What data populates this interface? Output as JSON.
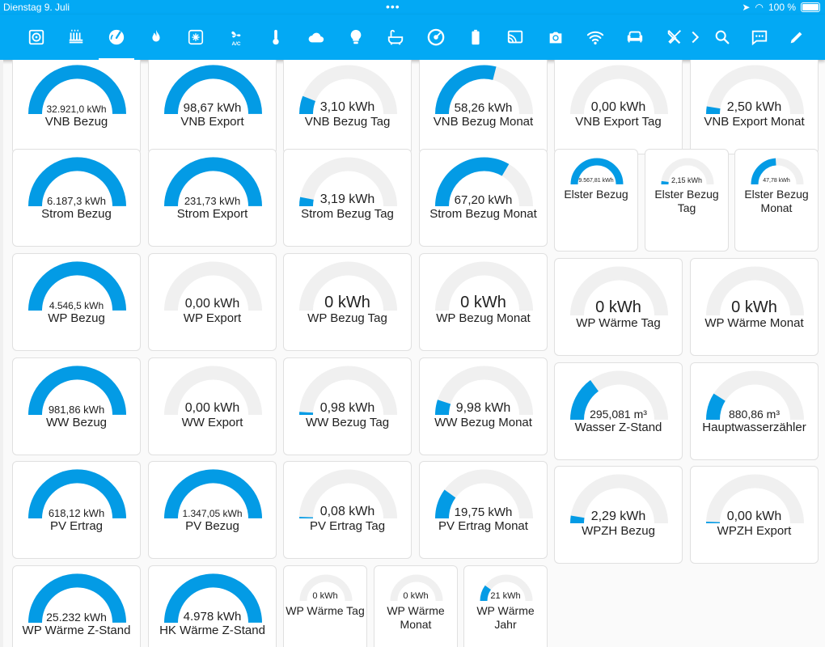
{
  "status_bar": {
    "date": "Dienstag 9. Juli",
    "battery": "100 %"
  },
  "toolbar": {
    "tabs": [
      {
        "icon": "hvac-unit-icon",
        "active": false
      },
      {
        "icon": "radiator-icon",
        "active": false
      },
      {
        "icon": "gauge-icon",
        "active": true
      },
      {
        "icon": "flame-icon",
        "active": false
      },
      {
        "icon": "heat-pump-icon",
        "active": false
      },
      {
        "icon": "air-conditioner-icon",
        "active": false
      },
      {
        "icon": "thermometer-icon",
        "active": false
      },
      {
        "icon": "cloud-icon",
        "active": false
      },
      {
        "icon": "lightbulb-icon",
        "active": false
      },
      {
        "icon": "bathtub-icon",
        "active": false
      },
      {
        "icon": "record-player-icon",
        "active": false
      },
      {
        "icon": "battery-icon",
        "active": false
      },
      {
        "icon": "cast-icon",
        "active": false
      },
      {
        "icon": "camera-icon",
        "active": false
      },
      {
        "icon": "wifi-icon",
        "active": false
      },
      {
        "icon": "sofa-icon",
        "active": false
      },
      {
        "icon": "silverware-icon",
        "active": false
      }
    ],
    "actions": [
      {
        "icon": "chevron-right-icon"
      },
      {
        "icon": "search-icon"
      },
      {
        "icon": "assist-icon"
      },
      {
        "icon": "pencil-icon"
      }
    ]
  },
  "colors": {
    "accent": "#03a9f4",
    "gauge_bg": "#f0f0f0",
    "gauge_fill": "#039be5"
  },
  "gauges": [
    {
      "name": "VNB Bezug",
      "value": "32.921,0 kWh",
      "fraction": 1.0
    },
    {
      "name": "VNB Export",
      "value": "98,67 kWh",
      "fraction": 1.0
    },
    {
      "name": "VNB Bezug Tag",
      "value": "3,10 kWh",
      "fraction": 0.12
    },
    {
      "name": "VNB Bezug Monat",
      "value": "58,26 kWh",
      "fraction": 0.58
    },
    {
      "name": "VNB Export Tag",
      "value": "0,00 kWh",
      "fraction": 0
    },
    {
      "name": "VNB Export Monat",
      "value": "2,50 kWh",
      "fraction": 0.05
    },
    {
      "name": "Strom Bezug",
      "value": "6.187,3 kWh",
      "fraction": 1.0
    },
    {
      "name": "Strom Export",
      "value": "231,73 kWh",
      "fraction": 1.0
    },
    {
      "name": "Strom Bezug Tag",
      "value": "3,19 kWh",
      "fraction": 0.06
    },
    {
      "name": "Strom Bezug Monat",
      "value": "67,20 kWh",
      "fraction": 0.67
    },
    {
      "name": "Elster Bezug",
      "value": "9.567,81 kWh",
      "fraction": 1.0
    },
    {
      "name": "Elster Bezug Tag",
      "value": "2,15 kWh",
      "fraction": 0.04
    },
    {
      "name": "Elster Bezug Monat",
      "value": "47,78 kWh",
      "fraction": 0.48
    },
    {
      "name": "WP Bezug",
      "value": "4.546,5 kWh",
      "fraction": 1.0
    },
    {
      "name": "WP Export",
      "value": "0,00 kWh",
      "fraction": 0
    },
    {
      "name": "WP Bezug Tag",
      "value": "0 kWh",
      "fraction": 0
    },
    {
      "name": "WP Bezug Monat",
      "value": "0 kWh",
      "fraction": 0
    },
    {
      "name": "WP Wärme Tag",
      "value": "0 kWh",
      "fraction": 0
    },
    {
      "name": "WP Wärme Monat",
      "value": "0 kWh",
      "fraction": 0
    },
    {
      "name": "WW Bezug",
      "value": "981,86 kWh",
      "fraction": 1.0
    },
    {
      "name": "WW Export",
      "value": "0,00 kWh",
      "fraction": 0
    },
    {
      "name": "WW Bezug Tag",
      "value": "0,98 kWh",
      "fraction": 0.02
    },
    {
      "name": "WW Bezug Monat",
      "value": "9,98 kWh",
      "fraction": 0.1
    },
    {
      "name": "Wasser Z-Stand",
      "value": "295,081 m³",
      "fraction": 0.3
    },
    {
      "name": "Hauptwasserzähler",
      "value": "880,86 m³",
      "fraction": 0.18
    },
    {
      "name": "PV Ertrag",
      "value": "618,12 kWh",
      "fraction": 1.0
    },
    {
      "name": "PV Bezug",
      "value": "1.347,05 kWh",
      "fraction": 1.0
    },
    {
      "name": "PV Ertrag Tag",
      "value": "0,08 kWh",
      "fraction": 0.01
    },
    {
      "name": "PV Ertrag Monat",
      "value": "19,75 kWh",
      "fraction": 0.2
    },
    {
      "name": "WPZH Bezug",
      "value": "2,29 kWh",
      "fraction": 0.05
    },
    {
      "name": "WPZH Export",
      "value": "0,00 kWh",
      "fraction": 0.01
    },
    {
      "name": "WP Wärme Z-Stand",
      "value": "25.232 kWh",
      "fraction": 1.0
    },
    {
      "name": "HK Wärme Z-Stand",
      "value": "4.978 kWh",
      "fraction": 1.0
    },
    {
      "name": "WP Wärme Tag",
      "value": "0 kWh",
      "fraction": 0
    },
    {
      "name": "WP Wärme Monat",
      "value": "0 kWh",
      "fraction": 0
    },
    {
      "name": "WP Wärme Jahr",
      "value": "21 kWh",
      "fraction": 0.2
    }
  ]
}
